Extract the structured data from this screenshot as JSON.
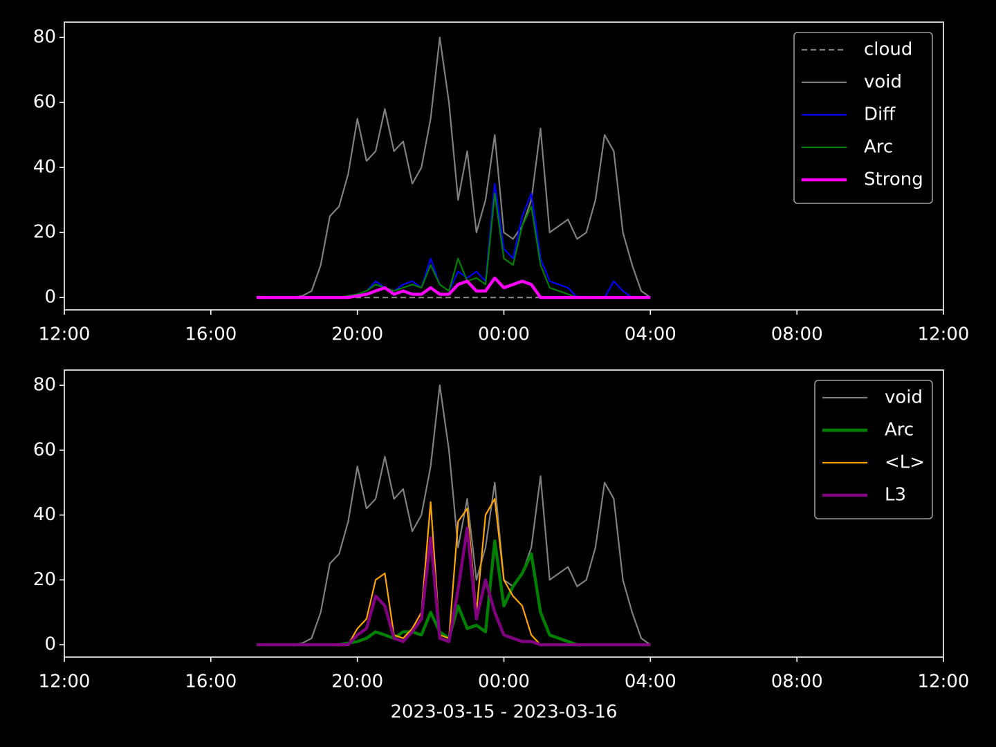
{
  "chart_data": [
    {
      "type": "line",
      "x": [
        17.25,
        17.5,
        17.75,
        18,
        18.25,
        18.5,
        18.75,
        19,
        19.25,
        19.5,
        19.75,
        20,
        20.25,
        20.5,
        20.75,
        21,
        21.25,
        21.5,
        21.75,
        22,
        22.25,
        22.5,
        22.75,
        23,
        23.25,
        23.5,
        23.75,
        24,
        24.25,
        24.5,
        24.75,
        25,
        25.25,
        25.5,
        25.75,
        26,
        26.25,
        26.5,
        26.75,
        27,
        27.25,
        27.5,
        27.75,
        28
      ],
      "xlim": [
        12,
        36
      ],
      "xticks": [
        {
          "value": 12,
          "label": "12:00"
        },
        {
          "value": 16,
          "label": "16:00"
        },
        {
          "value": 20,
          "label": "20:00"
        },
        {
          "value": 24,
          "label": "00:00"
        },
        {
          "value": 28,
          "label": "04:00"
        },
        {
          "value": 32,
          "label": "08:00"
        },
        {
          "value": 36,
          "label": "12:00"
        }
      ],
      "ylim": [
        -3.8,
        84.7
      ],
      "yticks": [
        0,
        20,
        40,
        60,
        80
      ],
      "legend": "upper right",
      "series": [
        {
          "name": "cloud",
          "color": "#808080",
          "linewidth": 1,
          "linestyle": "dashed",
          "values": [
            0,
            0,
            0,
            0,
            0,
            0,
            0,
            0,
            0,
            0,
            0,
            0,
            0,
            0,
            0,
            0,
            0,
            0,
            0,
            0,
            0,
            0,
            0,
            0,
            0,
            0,
            0,
            0,
            0,
            0,
            0,
            0,
            0,
            0,
            0,
            0,
            0,
            0,
            0,
            0,
            0,
            0,
            0,
            0
          ]
        },
        {
          "name": "void",
          "color": "#808080",
          "linewidth": 1,
          "linestyle": "solid",
          "values": [
            0,
            0,
            0,
            0,
            0,
            0.5,
            2,
            10,
            25,
            28,
            38,
            55,
            42,
            45,
            58,
            45,
            48,
            35,
            40,
            55,
            80,
            60,
            30,
            45,
            20,
            30,
            50,
            20,
            18,
            22,
            30,
            52,
            20,
            22,
            24,
            18,
            20,
            30,
            50,
            45,
            20,
            10,
            2,
            0
          ]
        },
        {
          "name": "Diff",
          "color": "#0000ff",
          "linewidth": 1,
          "linestyle": "solid",
          "values": [
            0,
            0,
            0,
            0,
            0,
            0,
            0,
            0,
            0,
            0,
            0.5,
            1,
            2,
            5,
            3,
            2,
            4,
            5,
            3,
            12,
            4,
            2,
            8,
            6,
            8,
            5,
            35,
            15,
            12,
            25,
            32,
            12,
            5,
            4,
            3,
            0,
            0,
            0,
            0,
            5,
            2,
            0,
            0,
            0
          ]
        },
        {
          "name": "Arc",
          "color": "#008000",
          "linewidth": 1,
          "linestyle": "solid",
          "values": [
            0,
            0,
            0,
            0,
            0,
            0,
            0,
            0,
            0,
            0,
            0.5,
            1,
            2,
            4,
            3,
            2,
            3,
            4,
            3,
            10,
            4,
            2,
            12,
            5,
            6,
            4,
            32,
            12,
            10,
            22,
            28,
            10,
            3,
            2,
            1,
            0,
            0,
            0,
            0,
            0,
            0,
            0,
            0,
            0
          ]
        },
        {
          "name": "Strong",
          "color": "#ff00ff",
          "linewidth": 2,
          "linestyle": "solid",
          "values": [
            0,
            0,
            0,
            0,
            0,
            0,
            0,
            0,
            0,
            0,
            0,
            0.5,
            1,
            2,
            3,
            1,
            2,
            1,
            1,
            3,
            1,
            1,
            4,
            5,
            2,
            2,
            6,
            3,
            4,
            5,
            4,
            0,
            0,
            0,
            0,
            0,
            0,
            0,
            0,
            0,
            0,
            0,
            0,
            0
          ]
        }
      ]
    },
    {
      "type": "line",
      "x": [
        17.25,
        17.5,
        17.75,
        18,
        18.25,
        18.5,
        18.75,
        19,
        19.25,
        19.5,
        19.75,
        20,
        20.25,
        20.5,
        20.75,
        21,
        21.25,
        21.5,
        21.75,
        22,
        22.25,
        22.5,
        22.75,
        23,
        23.25,
        23.5,
        23.75,
        24,
        24.25,
        24.5,
        24.75,
        25,
        25.25,
        25.5,
        25.75,
        26,
        26.25,
        26.5,
        26.75,
        27,
        27.25,
        27.5,
        27.75,
        28
      ],
      "xlim": [
        12,
        36
      ],
      "xticks": [
        {
          "value": 12,
          "label": "12:00"
        },
        {
          "value": 16,
          "label": "16:00"
        },
        {
          "value": 20,
          "label": "20:00"
        },
        {
          "value": 24,
          "label": "00:00"
        },
        {
          "value": 28,
          "label": "04:00"
        },
        {
          "value": 32,
          "label": "08:00"
        },
        {
          "value": 36,
          "label": "12:00"
        }
      ],
      "ylim": [
        -3.8,
        84.7
      ],
      "yticks": [
        0,
        20,
        40,
        60,
        80
      ],
      "xlabel": "2023-03-15 - 2023-03-16",
      "legend": "upper right",
      "series": [
        {
          "name": "void",
          "color": "#808080",
          "linewidth": 1,
          "linestyle": "solid",
          "values": [
            0,
            0,
            0,
            0,
            0,
            0.5,
            2,
            10,
            25,
            28,
            38,
            55,
            42,
            45,
            58,
            45,
            48,
            35,
            40,
            55,
            80,
            60,
            30,
            45,
            20,
            30,
            50,
            20,
            18,
            22,
            30,
            52,
            20,
            22,
            24,
            18,
            20,
            30,
            50,
            45,
            20,
            10,
            2,
            0
          ]
        },
        {
          "name": "Arc",
          "color": "#008000",
          "linewidth": 2,
          "linestyle": "solid",
          "values": [
            0,
            0,
            0,
            0,
            0,
            0,
            0,
            0,
            0,
            0,
            0.5,
            1,
            2,
            4,
            3,
            2,
            4,
            4,
            3,
            10,
            4,
            2,
            12,
            5,
            6,
            4,
            32,
            12,
            18,
            22,
            28,
            10,
            3,
            2,
            1,
            0,
            0,
            0,
            0,
            0,
            0,
            0,
            0,
            0
          ]
        },
        {
          "name": "<L>",
          "color": "#ffa500",
          "linewidth": 1,
          "linestyle": "solid",
          "values": [
            0,
            0,
            0,
            0,
            0,
            0,
            0,
            0,
            0,
            0,
            0,
            5,
            8,
            20,
            22,
            3,
            2,
            5,
            10,
            44,
            3,
            2,
            38,
            42,
            10,
            40,
            45,
            20,
            15,
            12,
            3,
            0,
            0,
            0,
            0,
            0,
            0,
            0,
            0,
            0,
            0,
            0,
            0,
            0
          ]
        },
        {
          "name": "L3",
          "color": "#800080",
          "linewidth": 2,
          "linestyle": "solid",
          "values": [
            0,
            0,
            0,
            0,
            0,
            0,
            0,
            0,
            0,
            0,
            0,
            3,
            5,
            15,
            12,
            2,
            1,
            4,
            8,
            33,
            2,
            1,
            17,
            36,
            8,
            20,
            10,
            3,
            2,
            1,
            1,
            0,
            0,
            0,
            0,
            0,
            0,
            0,
            0,
            0,
            0,
            0,
            0,
            0
          ]
        }
      ]
    }
  ]
}
